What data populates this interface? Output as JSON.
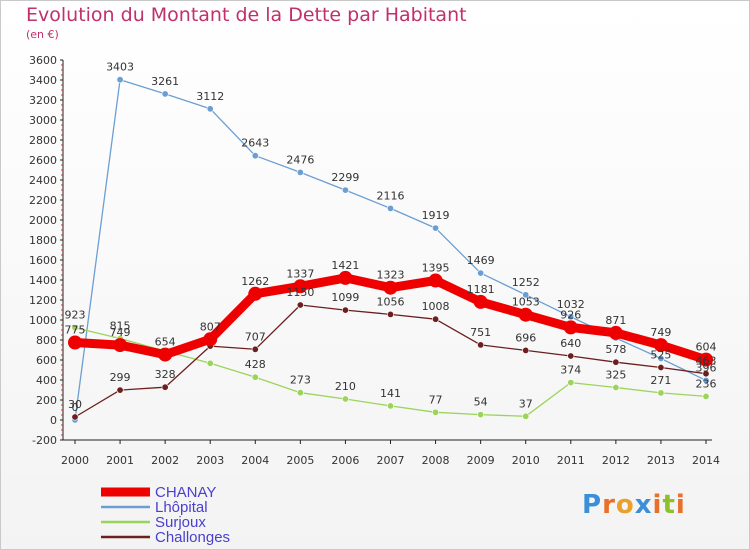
{
  "title": "Evolution du Montant de la Dette par Habitant",
  "subtitle": "(en €)",
  "logo": {
    "text": "Proxiti",
    "letters": [
      "P",
      "r",
      "o",
      "x",
      "i",
      "t",
      "i"
    ],
    "colors": [
      "#3a8fd8",
      "#e8702a",
      "#e8a12a",
      "#3a8fd8",
      "#e8702a",
      "#8fbf2a",
      "#e8702a"
    ]
  },
  "chart_data": {
    "type": "line",
    "x": [
      "2000",
      "2001",
      "2002",
      "2003",
      "2004",
      "2005",
      "2006",
      "2007",
      "2008",
      "2009",
      "2010",
      "2011",
      "2012",
      "2013",
      "2014"
    ],
    "ylim": [
      -200,
      3600
    ],
    "yticks": [
      -200,
      0,
      200,
      400,
      600,
      800,
      1000,
      1200,
      1400,
      1600,
      1800,
      2000,
      2200,
      2400,
      2600,
      2800,
      3000,
      3200,
      3400,
      3600
    ],
    "grid": false,
    "legend_position": "bottom-left",
    "series": [
      {
        "name": "CHANAY",
        "color": "#ee0000",
        "width": 9,
        "marker": 7,
        "values": [
          775,
          749,
          654,
          807,
          1262,
          1337,
          1421,
          1323,
          1395,
          1181,
          1053,
          926,
          871,
          749,
          604
        ],
        "labels": [
          "775",
          "749",
          "654",
          "807",
          "1262",
          "1337",
          "1421",
          "1323",
          "1395",
          "1181",
          "1053",
          "926",
          "871",
          "749",
          "604"
        ]
      },
      {
        "name": "Lhôpital",
        "color": "#6b9fd3",
        "width": 1.3,
        "marker": 3.2,
        "values": [
          0,
          3403,
          3261,
          3112,
          2643,
          2476,
          2299,
          2116,
          1919,
          1469,
          1252,
          1032,
          820,
          615,
          396
        ],
        "labels": [
          "0",
          "3403",
          "3261",
          "3112",
          "2643",
          "2476",
          "2299",
          "2116",
          "1919",
          "1469",
          "1252",
          "1032",
          "",
          "",
          "396"
        ]
      },
      {
        "name": "Surjoux",
        "color": "#9bd45a",
        "width": 1.3,
        "marker": 3.2,
        "values": [
          923,
          815,
          690,
          567,
          428,
          273,
          210,
          141,
          77,
          54,
          37,
          374,
          325,
          271,
          236
        ],
        "labels": [
          "923",
          "815",
          "",
          "",
          "428",
          "273",
          "210",
          "141",
          "77",
          "54",
          "37",
          "374",
          "325",
          "271",
          "236"
        ]
      },
      {
        "name": "Challonges",
        "color": "#6b1f1f",
        "width": 1.3,
        "marker": 3.2,
        "values": [
          30,
          299,
          328,
          739,
          707,
          1150,
          1099,
          1056,
          1008,
          751,
          696,
          640,
          578,
          525,
          463
        ],
        "labels": [
          "30",
          "299",
          "328",
          "",
          "707",
          "1150",
          "1099",
          "1056",
          "1008",
          "751",
          "696",
          "640",
          "578",
          "525",
          "463"
        ]
      }
    ]
  }
}
